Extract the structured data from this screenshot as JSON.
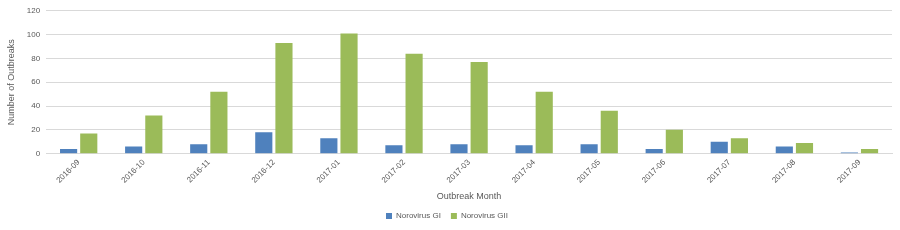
{
  "chart_data": {
    "type": "bar",
    "x_label": "Outbreak Month",
    "y_label": "Number of Outbreaks",
    "categories": [
      "2016-09",
      "2016-10",
      "2016-11",
      "2016-12",
      "2017-01",
      "2017-02",
      "2017-03",
      "2017-04",
      "2017-05",
      "2017-06",
      "2017-07",
      "2017-08",
      "2017-09"
    ],
    "series": [
      {
        "name": "Norovirus GI",
        "color": "#4f81bd",
        "values": [
          4,
          6,
          8,
          18,
          13,
          7,
          8,
          7,
          8,
          4,
          10,
          6,
          1
        ]
      },
      {
        "name": "Norovirus GII",
        "color": "#9bbb59",
        "values": [
          17,
          32,
          52,
          93,
          101,
          84,
          77,
          52,
          36,
          20,
          13,
          9,
          4
        ]
      }
    ],
    "ylim": [
      0,
      120
    ],
    "yticks": [
      0,
      20,
      40,
      60,
      80,
      100,
      120
    ],
    "grid": true,
    "legend": "bottom"
  }
}
